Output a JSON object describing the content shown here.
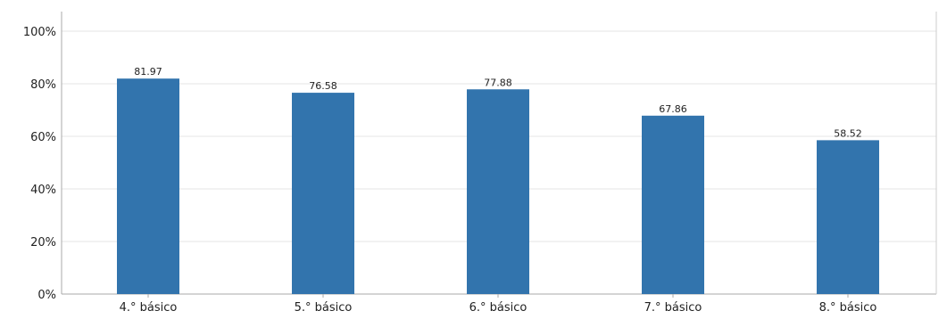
{
  "chart_data": {
    "type": "bar",
    "title": "",
    "xlabel": "",
    "ylabel": "",
    "categories": [
      "4.° básico",
      "5.° básico",
      "6.° básico",
      "7.° básico",
      "8.° básico"
    ],
    "values": [
      81.97,
      76.58,
      77.88,
      67.86,
      58.52
    ],
    "value_labels": [
      "81.97",
      "76.58",
      "77.88",
      "67.86",
      "58.52"
    ],
    "ylim": [
      0,
      100
    ],
    "yticks": [
      0,
      20,
      40,
      60,
      80,
      100
    ],
    "ytick_labels": [
      "0%",
      "20%",
      "40%",
      "60%",
      "80%",
      "100%"
    ],
    "grid": true,
    "legend": "none",
    "bar_color": "#3274ad",
    "grid_color": "#e6e6e6",
    "axis_color": "#aaaaaa"
  }
}
